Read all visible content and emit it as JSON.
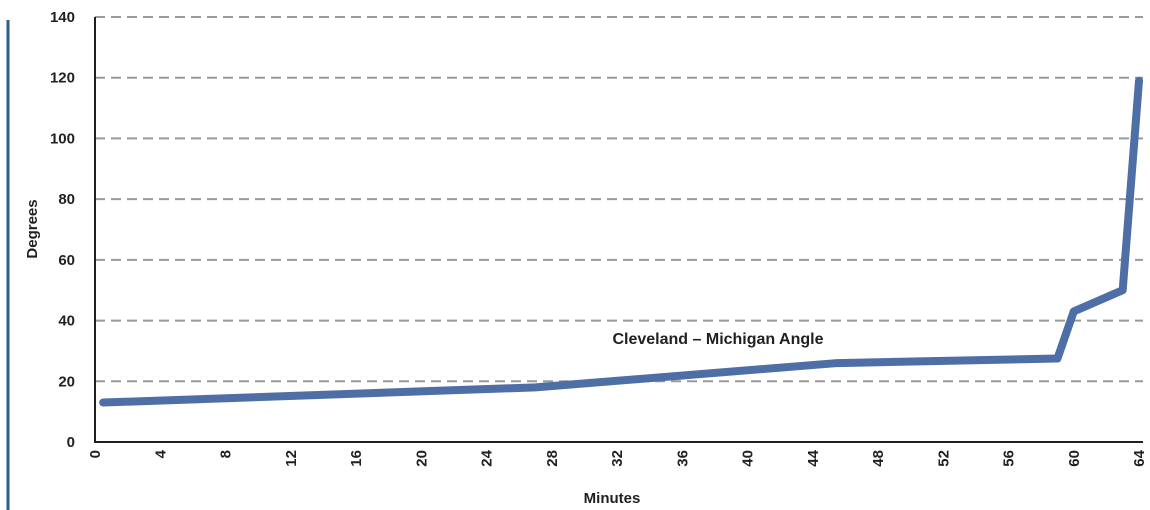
{
  "chart_data": {
    "type": "line",
    "title": "",
    "xlabel": "Minutes",
    "ylabel": "Degrees",
    "xlim": [
      0,
      64
    ],
    "ylim": [
      0,
      140
    ],
    "x_ticks": [
      "0",
      "4",
      "8",
      "12",
      "16",
      "20",
      "24",
      "28",
      "32",
      "36",
      "40",
      "44",
      "48",
      "52",
      "56",
      "60",
      "64"
    ],
    "y_ticks": [
      "0",
      "20",
      "40",
      "60",
      "80",
      "100",
      "120",
      "140"
    ],
    "grid": "horizontal dashed",
    "annotation": "Cleveland – Michigan Angle",
    "series": [
      {
        "color": "#4e6ea6",
        "x": [
          0.5,
          27,
          45.5,
          59,
          60,
          63,
          64
        ],
        "y": [
          13,
          18,
          26,
          27.5,
          43,
          50,
          119
        ]
      }
    ]
  }
}
